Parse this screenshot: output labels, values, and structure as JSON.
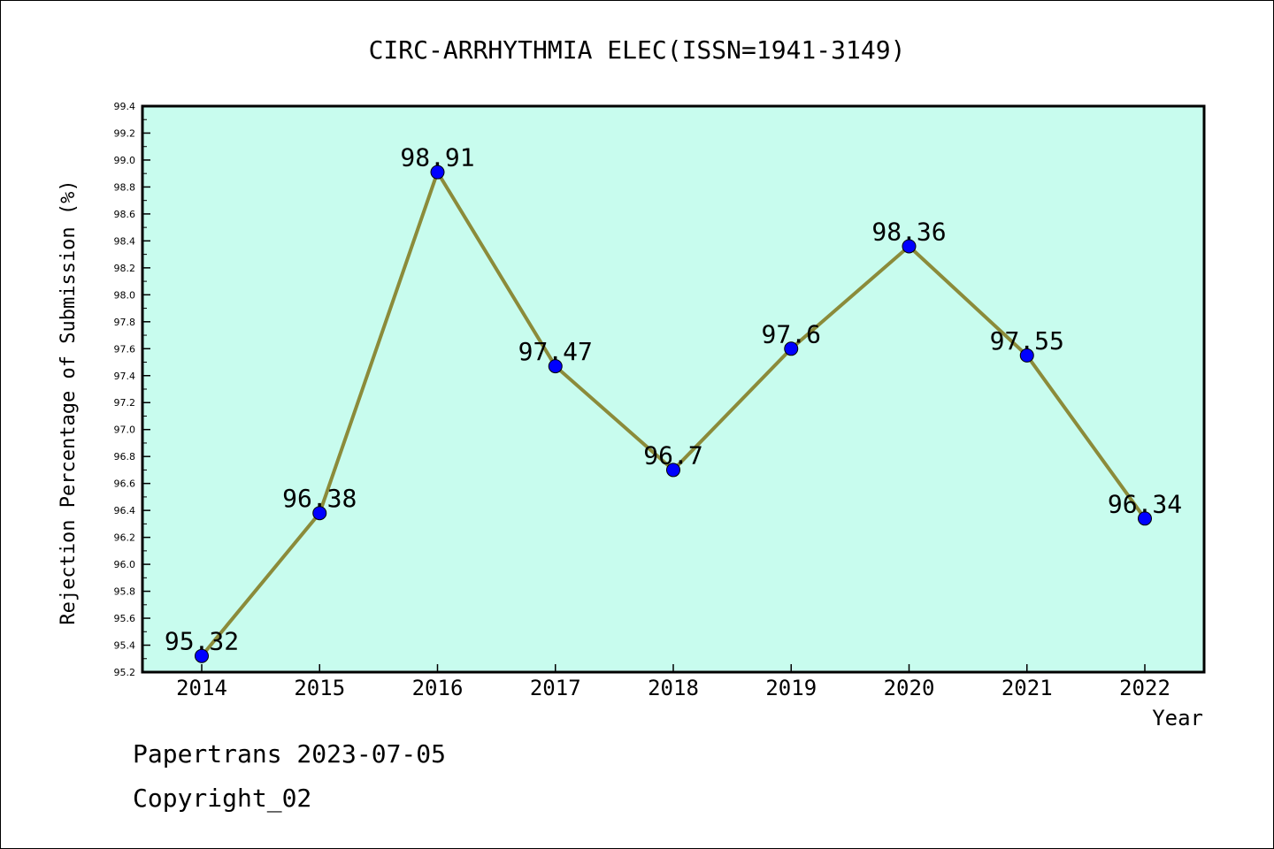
{
  "chart_data": {
    "type": "line",
    "title": "CIRC-ARRHYTHMIA ELEC(ISSN=1941-3149)",
    "xlabel": "Year",
    "ylabel": "Rejection Percentage of Submission (%)",
    "categories": [
      "2014",
      "2015",
      "2016",
      "2017",
      "2018",
      "2019",
      "2020",
      "2021",
      "2022"
    ],
    "values": [
      95.32,
      96.38,
      98.91,
      97.47,
      96.7,
      97.6,
      98.36,
      97.55,
      96.34
    ],
    "data_labels": [
      "95.32",
      "96.38",
      "98.91",
      "97.47",
      "96.7",
      "97.6",
      "98.36",
      "97.55",
      "96.34"
    ],
    "ylim": [
      95.2,
      99.4
    ],
    "yticks": [
      "95.2",
      "95.4",
      "95.6",
      "95.8",
      "96.0",
      "96.2",
      "96.4",
      "96.6",
      "96.8",
      "97.0",
      "97.2",
      "97.4",
      "97.6",
      "97.8",
      "98.0",
      "98.2",
      "98.4",
      "98.6",
      "98.8",
      "99.0",
      "99.2",
      "99.4"
    ],
    "grid": false,
    "colors": {
      "plot_background": "#c8fcee",
      "line": "#8b8b3a",
      "marker": "#0000ff"
    }
  },
  "footer": {
    "line1": "Papertrans 2023-07-05",
    "line2": "Copyright_02"
  }
}
